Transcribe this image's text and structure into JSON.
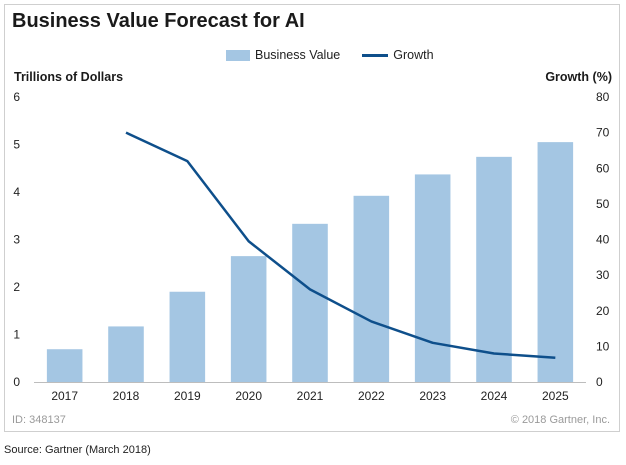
{
  "header": {
    "title": "Business Value Forecast for AI"
  },
  "footer": {
    "id_text": "ID: 348137",
    "copyright": "© 2018 Gartner, Inc.",
    "source": "Source: Gartner (March 2018)"
  },
  "chart_data": {
    "type": "bar",
    "categories": [
      "2017",
      "2018",
      "2019",
      "2020",
      "2021",
      "2022",
      "2023",
      "2024",
      "2025"
    ],
    "series": [
      {
        "name": "Business Value",
        "type": "bar",
        "axis": "left",
        "color": "#a4c6e3",
        "values": [
          0.69,
          1.17,
          1.9,
          2.65,
          3.33,
          3.92,
          4.37,
          4.74,
          5.05
        ]
      },
      {
        "name": "Growth",
        "type": "line",
        "axis": "right",
        "color": "#0e4f8b",
        "values": [
          null,
          70,
          62,
          39.5,
          26,
          17,
          11,
          8,
          6.8
        ]
      }
    ],
    "ylabel": "Trillions of Dollars",
    "ylim": [
      0,
      6
    ],
    "yticks": [
      0,
      1,
      2,
      3,
      4,
      5,
      6
    ],
    "y2label": "Growth (%)",
    "y2lim": [
      0,
      80
    ],
    "y2ticks": [
      0,
      10,
      20,
      30,
      40,
      50,
      60,
      70,
      80
    ],
    "grid": false,
    "legend": "top-center"
  }
}
